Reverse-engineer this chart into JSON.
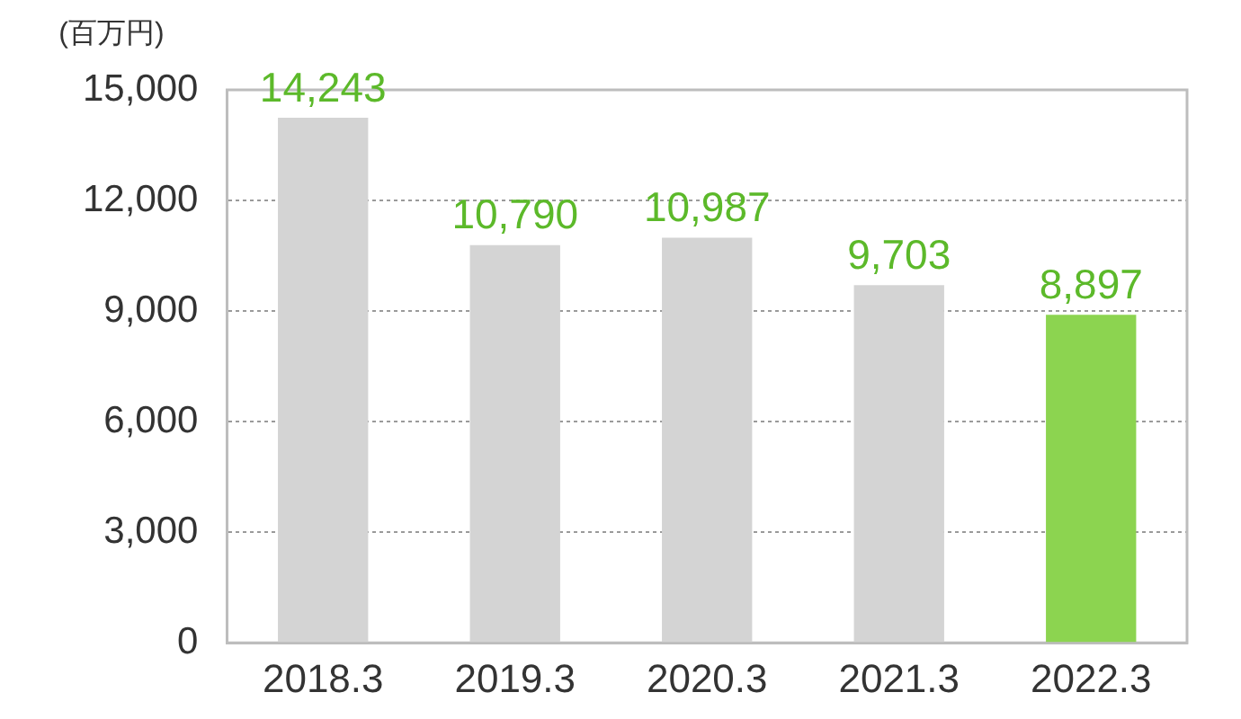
{
  "chart_data": {
    "type": "bar",
    "ylabel": "(百万円)",
    "categories": [
      "2018.3",
      "2019.3",
      "2020.3",
      "2021.3",
      "2022.3"
    ],
    "values": [
      14243,
      10790,
      10987,
      9703,
      8897
    ],
    "value_labels": [
      "14,243",
      "10,790",
      "10,987",
      "9,703",
      "8,897"
    ],
    "colors": [
      "#d4d4d4",
      "#d4d4d4",
      "#d4d4d4",
      "#d4d4d4",
      "#8cd450"
    ],
    "ylim": [
      0,
      15000
    ],
    "yticks": [
      0,
      {
        "value": 3000,
        "label": "3,000"
      },
      {
        "value": 6000,
        "label": "6,000"
      },
      {
        "value": 9000,
        "label": "9,000"
      },
      {
        "value": 12000,
        "label": "12,000"
      },
      {
        "value": 15000,
        "label": "15,000"
      }
    ],
    "grid": "y",
    "legend": false
  }
}
